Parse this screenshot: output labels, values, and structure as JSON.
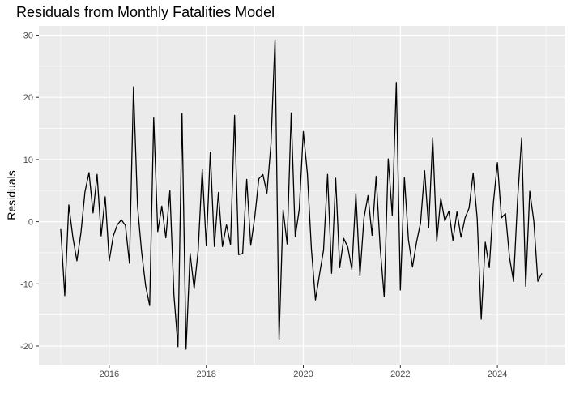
{
  "colors": {
    "panel": "#ebebeb",
    "grid_major": "#ffffff",
    "line": "#000000",
    "tick_text": "#4d4d4d"
  },
  "chart_data": {
    "type": "line",
    "title": "Residuals from Monthly Fatalities Model",
    "xlabel": "",
    "ylabel": "Residuals",
    "xlim": [
      2014.55,
      2025.4
    ],
    "ylim": [
      -23,
      31.5
    ],
    "x_ticks": [
      2016,
      2018,
      2020,
      2022,
      2024
    ],
    "y_ticks": [
      -20,
      -10,
      0,
      10,
      20,
      30
    ],
    "grid": true,
    "legend": "none",
    "x_start": "2015-01",
    "x_step": "1 month",
    "values": [
      -1.2,
      -11.9,
      2.7,
      -2.5,
      -6.3,
      -1.8,
      4.8,
      7.9,
      1.4,
      7.6,
      -2.3,
      4.0,
      -6.3,
      -2.3,
      -0.5,
      0.3,
      -0.6,
      -6.7,
      21.7,
      2.5,
      -4.8,
      -10.3,
      -13.5,
      16.7,
      -1.6,
      2.5,
      -2.6,
      5.0,
      -11.8,
      -20.1,
      17.4,
      -20.5,
      -5.1,
      -10.8,
      -4.6,
      8.4,
      -3.9,
      11.2,
      -4.0,
      4.7,
      -4.0,
      -0.5,
      -3.7,
      17.1,
      -5.3,
      -5.1,
      6.8,
      -3.8,
      0.8,
      6.9,
      7.6,
      4.6,
      12.5,
      29.3,
      -19.0,
      1.9,
      -3.6,
      17.5,
      -2.4,
      2.0,
      14.5,
      7.8,
      -4.4,
      -12.6,
      -8.5,
      -4.6,
      7.6,
      -8.3,
      7.0,
      -7.4,
      -2.7,
      -4.1,
      -7.7,
      4.5,
      -8.7,
      0.6,
      4.2,
      -2.2,
      7.3,
      -4.1,
      -12.1,
      10.1,
      1.0,
      22.4,
      -11.0,
      7.1,
      -2.9,
      -7.3,
      -3.3,
      -0.2,
      8.2,
      -1.0,
      13.5,
      -3.2,
      3.8,
      0.1,
      1.7,
      -3.0,
      1.6,
      -2.5,
      0.6,
      2.2,
      7.8,
      0.5,
      -15.7,
      -3.3,
      -7.4,
      3.0,
      9.5,
      0.6,
      1.3,
      -5.8,
      -9.6,
      3.7,
      13.5,
      -10.4,
      4.9,
      0.1,
      -9.6,
      -8.3
    ]
  }
}
